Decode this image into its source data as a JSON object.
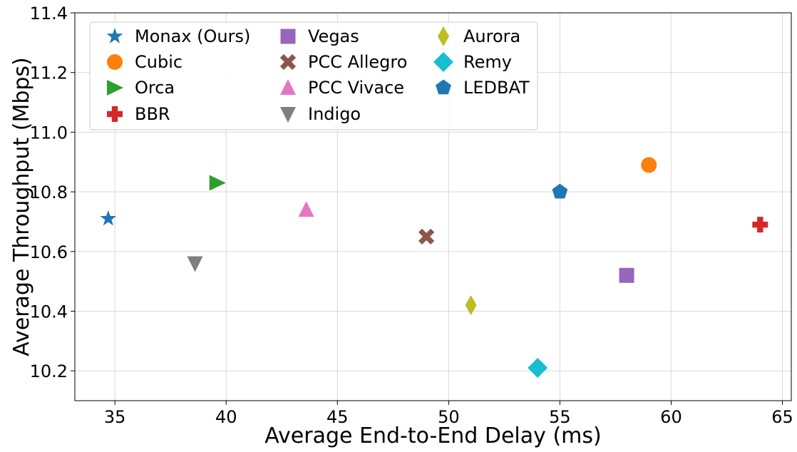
{
  "chart_data": {
    "type": "scatter",
    "title": "",
    "xlabel": "Average End-to-End Delay (ms)",
    "ylabel": "Average Throughput (Mbps)",
    "xlim": [
      33.2,
      65.4
    ],
    "ylim": [
      10.1,
      11.4
    ],
    "xticks": [
      35,
      40,
      45,
      50,
      55,
      60,
      65
    ],
    "yticks": [
      10.2,
      10.4,
      10.6,
      10.8,
      11.0,
      11.2,
      11.4
    ],
    "ytick_labels": [
      "10.2",
      "10.4",
      "10.6",
      "10.8",
      "11.0",
      "11.2",
      "11.4"
    ],
    "grid": true,
    "legend_position": "top-left",
    "legend_columns": 3,
    "series": [
      {
        "name": "Monax (Ours)",
        "marker": "star",
        "color": "#1f77b4",
        "x": 34.7,
        "y": 10.71
      },
      {
        "name": "Cubic",
        "marker": "circle",
        "color": "#ff7f0e",
        "x": 59.0,
        "y": 10.89
      },
      {
        "name": "Orca",
        "marker": "triangle-right",
        "color": "#2ca02c",
        "x": 39.6,
        "y": 10.83
      },
      {
        "name": "BBR",
        "marker": "plus",
        "color": "#d62728",
        "x": 64.0,
        "y": 10.69
      },
      {
        "name": "Vegas",
        "marker": "square",
        "color": "#9467bd",
        "x": 58.0,
        "y": 10.52
      },
      {
        "name": "PCC Allegro",
        "marker": "x",
        "color": "#8c564b",
        "x": 49.0,
        "y": 10.65
      },
      {
        "name": "PCC Vivace",
        "marker": "triangle-up",
        "color": "#e377c2",
        "x": 43.6,
        "y": 10.74
      },
      {
        "name": "Indigo",
        "marker": "triangle-down",
        "color": "#7f7f7f",
        "x": 38.6,
        "y": 10.56
      },
      {
        "name": "Aurora",
        "marker": "thin-diamond",
        "color": "#bcbd22",
        "x": 51.0,
        "y": 10.42
      },
      {
        "name": "Remy",
        "marker": "diamond",
        "color": "#17becf",
        "x": 54.0,
        "y": 10.21
      },
      {
        "name": "LEDBAT",
        "marker": "pentagon",
        "color": "#1f77b4",
        "x": 55.0,
        "y": 10.8
      }
    ]
  }
}
